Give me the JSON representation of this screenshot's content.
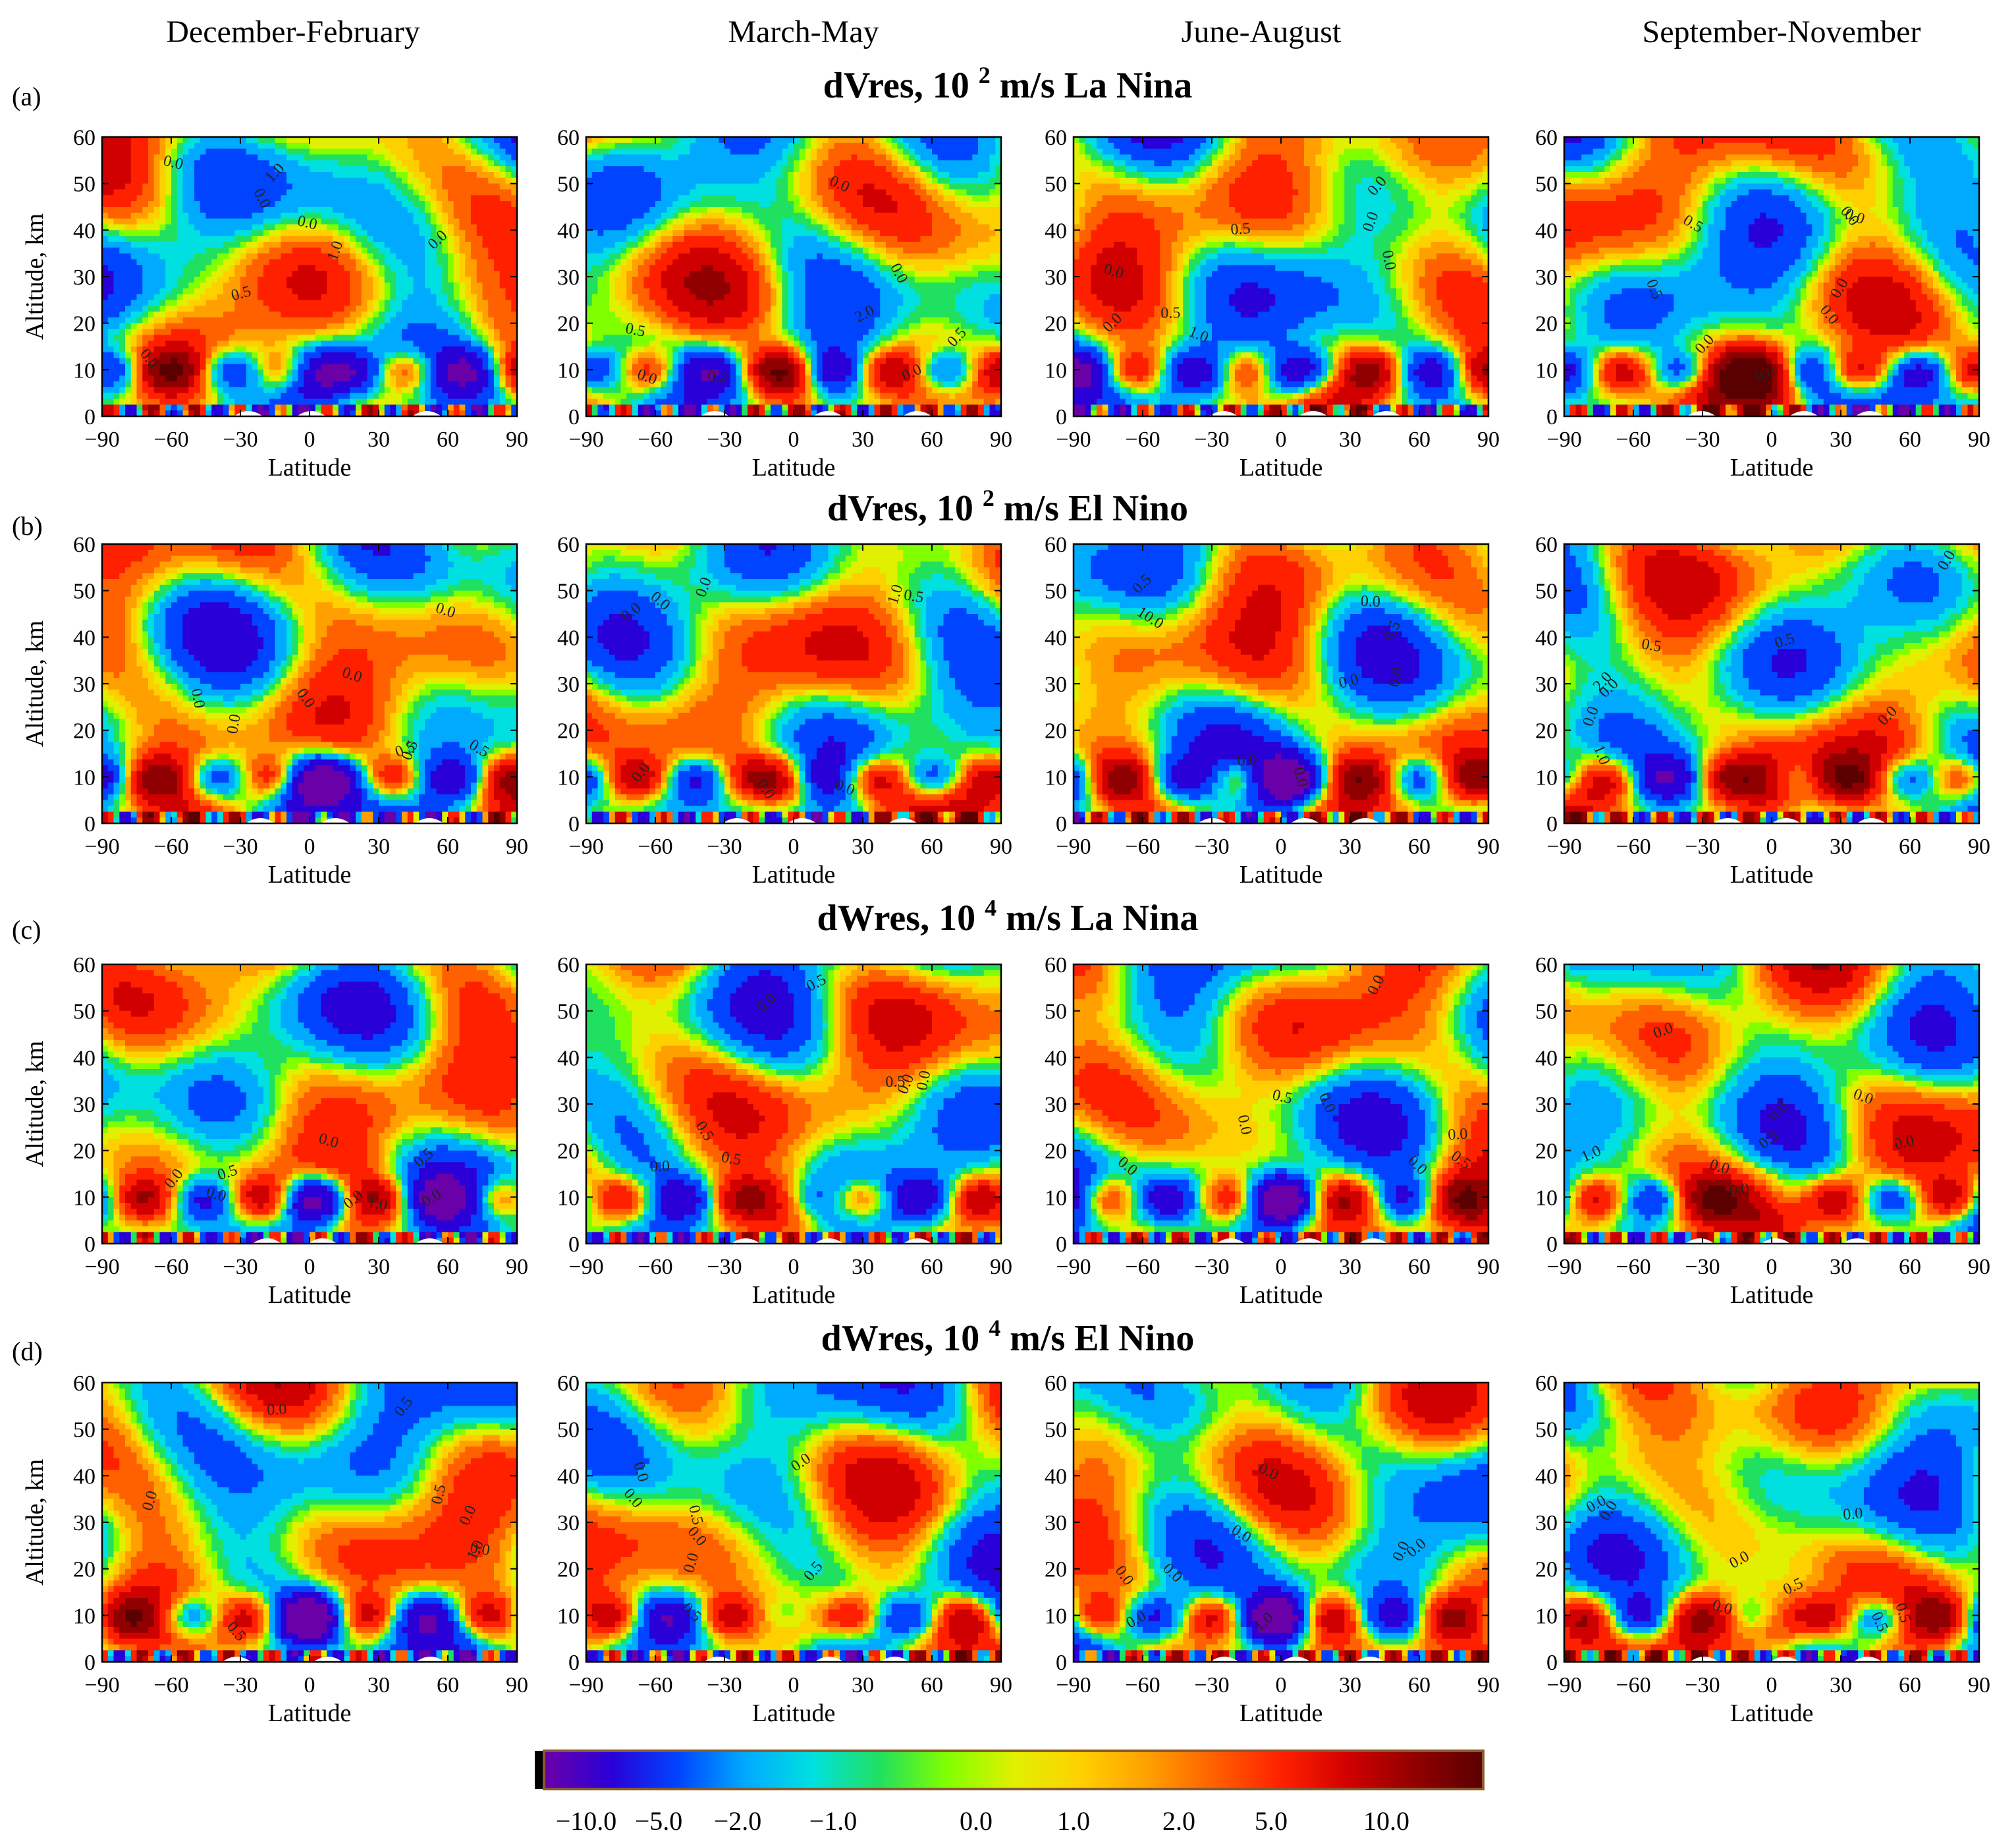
{
  "figure": {
    "season_titles": [
      "December-February",
      "March-May",
      "June-August",
      "September-November"
    ],
    "rows": [
      {
        "panel_label": "(a)",
        "title_var": "dVres,",
        "title_scale": "10",
        "title_exp": "2",
        "title_unit": "m/s",
        "title_phase": "La Nina"
      },
      {
        "panel_label": "(b)",
        "title_var": "dVres,",
        "title_scale": "10",
        "title_exp": "2",
        "title_unit": "m/s",
        "title_phase": "El Nino"
      },
      {
        "panel_label": "(c)",
        "title_var": "dWres,",
        "title_scale": "10",
        "title_exp": "4",
        "title_unit": "m/s",
        "title_phase": "La Nina"
      },
      {
        "panel_label": "(d)",
        "title_var": "dWres,",
        "title_scale": "10",
        "title_exp": "4",
        "title_unit": "m/s",
        "title_phase": "El Nino"
      }
    ],
    "colorbar": {
      "tick_labels": [
        "−10.0",
        "−5.0",
        "−2.0",
        "−1.0",
        "0.0",
        "1.0",
        "2.0",
        "5.0",
        "10.0"
      ],
      "colors": [
        "#6a00a8",
        "#2a00d8",
        "#0044ff",
        "#00aaff",
        "#00e0e0",
        "#20e060",
        "#80ff00",
        "#e0f000",
        "#ffd000",
        "#ffa000",
        "#ff6000",
        "#ff2000",
        "#d00000",
        "#900000",
        "#5a0000"
      ],
      "endcap_color": "#000000"
    }
  },
  "chart_data": [
    {
      "type": "heatmap",
      "row": "a",
      "season": "December-February",
      "variable": "dVres",
      "scale": "10^2 m/s",
      "phase": "La Nina",
      "xlabel": "Latitude",
      "ylabel": "Altitude, km",
      "xlim": [
        -90,
        90
      ],
      "ylim": [
        0,
        60
      ],
      "xticks": [
        -90,
        -60,
        -30,
        0,
        30,
        60,
        90
      ],
      "yticks": [
        0,
        10,
        20,
        30,
        40,
        50,
        60
      ],
      "contour_labels": [
        "1.0",
        "0.0",
        "1.0",
        "0.0",
        "0.0",
        "0.5",
        "0.0",
        "0.0"
      ]
    },
    {
      "type": "heatmap",
      "row": "a",
      "season": "March-May",
      "variable": "dVres",
      "scale": "10^2 m/s",
      "phase": "La Nina",
      "xlabel": "Latitude",
      "ylabel": "",
      "xlim": [
        -90,
        90
      ],
      "ylim": [
        0,
        60
      ],
      "xticks": [
        -90,
        -60,
        -30,
        0,
        30,
        60,
        90
      ],
      "yticks": [
        0,
        10,
        20,
        30,
        40,
        50,
        60
      ],
      "contour_labels": [
        "0.2",
        "0.5",
        "0.5",
        "0.0",
        "0.0",
        "2.0",
        "0.0",
        "0.0"
      ]
    },
    {
      "type": "heatmap",
      "row": "a",
      "season": "June-August",
      "variable": "dVres",
      "scale": "10^2 m/s",
      "phase": "La Nina",
      "xlabel": "Latitude",
      "ylabel": "",
      "xlim": [
        -90,
        90
      ],
      "ylim": [
        0,
        60
      ],
      "xticks": [
        -90,
        -60,
        -30,
        0,
        30,
        60,
        90
      ],
      "yticks": [
        0,
        10,
        20,
        30,
        40,
        50,
        60
      ],
      "contour_labels": [
        "0.0",
        "0.0",
        "0.5",
        "0.5",
        "0.0",
        "1.0",
        "0.0",
        "0.0"
      ]
    },
    {
      "type": "heatmap",
      "row": "a",
      "season": "September-November",
      "variable": "dVres",
      "scale": "10^2 m/s",
      "phase": "La Nina",
      "xlabel": "Latitude",
      "ylabel": "",
      "xlim": [
        -90,
        90
      ],
      "ylim": [
        0,
        60
      ],
      "xticks": [
        -90,
        -60,
        -30,
        0,
        30,
        60,
        90
      ],
      "yticks": [
        0,
        10,
        20,
        30,
        40,
        50,
        60
      ],
      "contour_labels": [
        "0.0",
        "0.5",
        "0.5",
        "0.0",
        "0.0",
        "0.0",
        "0.0",
        "0.0"
      ]
    },
    {
      "type": "heatmap",
      "row": "b",
      "season": "December-February",
      "variable": "dVres",
      "scale": "10^2 m/s",
      "phase": "El Nino",
      "xlabel": "Latitude",
      "ylabel": "Altitude, km",
      "xlim": [
        -90,
        90
      ],
      "ylim": [
        0,
        60
      ],
      "xticks": [
        -90,
        -60,
        -30,
        0,
        30,
        60,
        90
      ],
      "yticks": [
        0,
        10,
        20,
        30,
        40,
        50,
        60
      ],
      "contour_labels": [
        "0.0",
        "0.5",
        "0.5",
        "0.0",
        "0.5",
        "0.0",
        "0.0",
        "0.0"
      ]
    },
    {
      "type": "heatmap",
      "row": "b",
      "season": "March-May",
      "variable": "dVres",
      "scale": "10^2 m/s",
      "phase": "El Nino",
      "xlabel": "Latitude",
      "ylabel": "",
      "xlim": [
        -90,
        90
      ],
      "ylim": [
        0,
        60
      ],
      "xticks": [
        -90,
        -60,
        -30,
        0,
        30,
        60,
        90
      ],
      "yticks": [
        0,
        10,
        20,
        30,
        40,
        50,
        60
      ],
      "contour_labels": [
        "0.5",
        "0.0",
        "1.0",
        "0.0",
        "0.0",
        "0.0",
        "0.0",
        "0.0"
      ]
    },
    {
      "type": "heatmap",
      "row": "b",
      "season": "June-August",
      "variable": "dVres",
      "scale": "10^2 m/s",
      "phase": "El Nino",
      "xlabel": "Latitude",
      "ylabel": "",
      "xlim": [
        -90,
        90
      ],
      "ylim": [
        0,
        60
      ],
      "xticks": [
        -90,
        -60,
        -30,
        0,
        30,
        60,
        90
      ],
      "yticks": [
        0,
        10,
        20,
        30,
        40,
        50,
        60
      ],
      "contour_labels": [
        "10.0",
        "0.5",
        "0.0",
        "0.0",
        "0.5",
        "0.0",
        "0.0",
        "0.0"
      ]
    },
    {
      "type": "heatmap",
      "row": "b",
      "season": "September-November",
      "variable": "dVres",
      "scale": "10^2 m/s",
      "phase": "El Nino",
      "xlabel": "Latitude",
      "ylabel": "",
      "xlim": [
        -90,
        90
      ],
      "ylim": [
        0,
        60
      ],
      "xticks": [
        -90,
        -60,
        -30,
        0,
        30,
        60,
        90
      ],
      "yticks": [
        0,
        10,
        20,
        30,
        40,
        50,
        60
      ],
      "contour_labels": [
        "2.0",
        "1.0",
        "0.5",
        "0.0",
        "0.5",
        "0.0",
        "0.0",
        "0.0"
      ]
    },
    {
      "type": "heatmap",
      "row": "c",
      "season": "December-February",
      "variable": "dWres",
      "scale": "10^4 m/s",
      "phase": "La Nina",
      "xlabel": "Latitude",
      "ylabel": "Altitude, km",
      "xlim": [
        -90,
        90
      ],
      "ylim": [
        0,
        60
      ],
      "xticks": [
        -90,
        -60,
        -30,
        0,
        30,
        60,
        90
      ],
      "yticks": [
        0,
        10,
        20,
        30,
        40,
        50,
        60
      ],
      "contour_labels": [
        "0.0",
        "0.5",
        "1.0",
        "0.0",
        "0.5",
        "0.0",
        "0.0",
        "0.0"
      ]
    },
    {
      "type": "heatmap",
      "row": "c",
      "season": "March-May",
      "variable": "dWres",
      "scale": "10^4 m/s",
      "phase": "La Nina",
      "xlabel": "Latitude",
      "ylabel": "",
      "xlim": [
        -90,
        90
      ],
      "ylim": [
        0,
        60
      ],
      "xticks": [
        -90,
        -60,
        -30,
        0,
        30,
        60,
        90
      ],
      "yticks": [
        0,
        10,
        20,
        30,
        40,
        50,
        60
      ],
      "contour_labels": [
        "0.5",
        "0.5",
        "0.5",
        "0.0",
        "0.5",
        "0.0",
        "0.0",
        "0.0"
      ]
    },
    {
      "type": "heatmap",
      "row": "c",
      "season": "June-August",
      "variable": "dWres",
      "scale": "10^4 m/s",
      "phase": "La Nina",
      "xlabel": "Latitude",
      "ylabel": "",
      "xlim": [
        -90,
        90
      ],
      "ylim": [
        0,
        60
      ],
      "xticks": [
        -90,
        -60,
        -30,
        0,
        30,
        60,
        90
      ],
      "yticks": [
        0,
        10,
        20,
        30,
        40,
        50,
        60
      ],
      "contour_labels": [
        "0.0",
        "0.0",
        "0.5",
        "0.0",
        "0.0",
        "0.5",
        "0.0",
        "0.0"
      ]
    },
    {
      "type": "heatmap",
      "row": "c",
      "season": "September-November",
      "variable": "dWres",
      "scale": "10^4 m/s",
      "phase": "La Nina",
      "xlabel": "Latitude",
      "ylabel": "",
      "xlim": [
        -90,
        90
      ],
      "ylim": [
        0,
        60
      ],
      "xticks": [
        -90,
        -60,
        -30,
        0,
        30,
        60,
        90
      ],
      "yticks": [
        0,
        10,
        20,
        30,
        40,
        50,
        60
      ],
      "contour_labels": [
        "1.0",
        "0.0",
        "0.0",
        "0.0",
        "0.5",
        "0.0",
        "0.0",
        "0.0"
      ]
    },
    {
      "type": "heatmap",
      "row": "d",
      "season": "December-February",
      "variable": "dWres",
      "scale": "10^4 m/s",
      "phase": "El Nino",
      "xlabel": "Latitude",
      "ylabel": "Altitude, km",
      "xlim": [
        -90,
        90
      ],
      "ylim": [
        0,
        60
      ],
      "xticks": [
        -90,
        -60,
        -30,
        0,
        30,
        60,
        90
      ],
      "yticks": [
        0,
        10,
        20,
        30,
        40,
        50,
        60
      ],
      "contour_labels": [
        "0.5",
        "0.5",
        "0.0",
        "1.0",
        "0.5",
        "0.0",
        "0.0",
        "0.0"
      ]
    },
    {
      "type": "heatmap",
      "row": "d",
      "season": "March-May",
      "variable": "dWres",
      "scale": "10^4 m/s",
      "phase": "El Nino",
      "xlabel": "Latitude",
      "ylabel": "",
      "xlim": [
        -90,
        90
      ],
      "ylim": [
        0,
        60
      ],
      "xticks": [
        -90,
        -60,
        -30,
        0,
        30,
        60,
        90
      ],
      "yticks": [
        0,
        10,
        20,
        30,
        40,
        50,
        60
      ],
      "contour_labels": [
        "0.5",
        "0.0",
        "0.5",
        "0.0",
        "0.0",
        "0.5",
        "0.0",
        "0.0"
      ]
    },
    {
      "type": "heatmap",
      "row": "d",
      "season": "June-August",
      "variable": "dWres",
      "scale": "10^4 m/s",
      "phase": "El Nino",
      "xlabel": "Latitude",
      "ylabel": "",
      "xlim": [
        -90,
        90
      ],
      "ylim": [
        0,
        60
      ],
      "xticks": [
        -90,
        -60,
        -30,
        0,
        30,
        60,
        90
      ],
      "yticks": [
        0,
        10,
        20,
        30,
        40,
        50,
        60
      ],
      "contour_labels": [
        "1.0",
        "0.0",
        "0.0",
        "0.0",
        "0.0",
        "0.0",
        "0.0",
        "0.0"
      ]
    },
    {
      "type": "heatmap",
      "row": "d",
      "season": "September-November",
      "variable": "dWres",
      "scale": "10^4 m/s",
      "phase": "El Nino",
      "xlabel": "Latitude",
      "ylabel": "",
      "xlim": [
        -90,
        90
      ],
      "ylim": [
        0,
        60
      ],
      "xticks": [
        -90,
        -60,
        -30,
        0,
        30,
        60,
        90
      ],
      "yticks": [
        0,
        10,
        20,
        30,
        40,
        50,
        60
      ],
      "contour_labels": [
        "0.5",
        "0.5",
        "0.0",
        "0.0",
        "0.0",
        "0.5",
        "0.0",
        "0.0"
      ]
    }
  ]
}
